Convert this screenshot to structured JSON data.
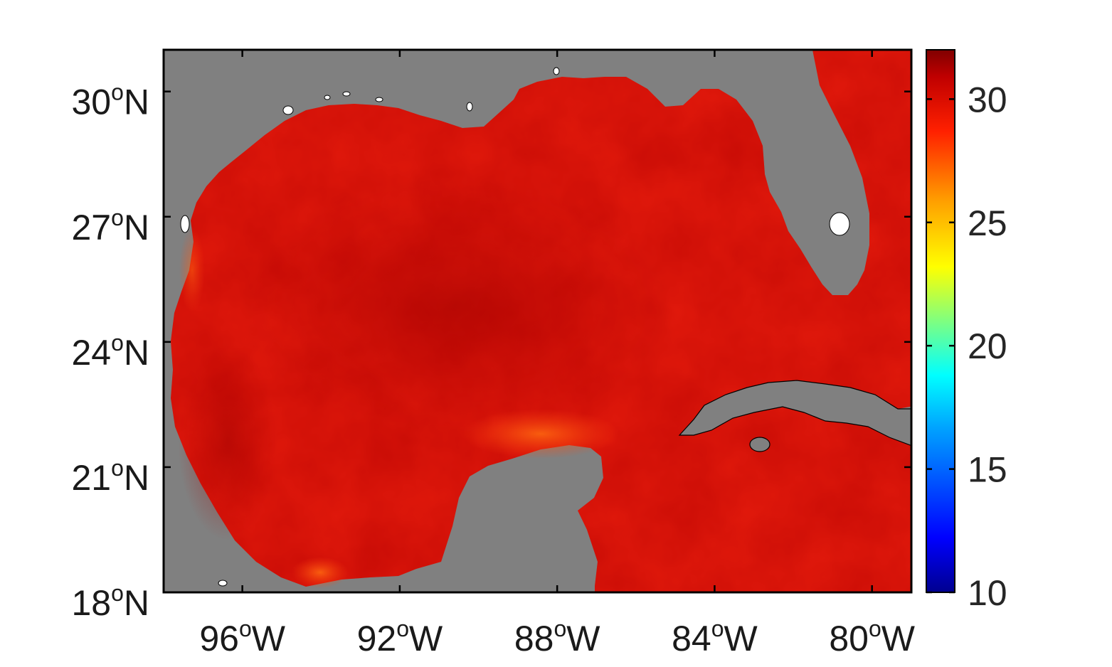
{
  "map": {
    "lat_ticks": [
      {
        "value": 30,
        "label": "30",
        "hemi": "N"
      },
      {
        "value": 27,
        "label": "27",
        "hemi": "N"
      },
      {
        "value": 24,
        "label": "24",
        "hemi": "N"
      },
      {
        "value": 21,
        "label": "21",
        "hemi": "N"
      },
      {
        "value": 18,
        "label": "18",
        "hemi": "N"
      }
    ],
    "lon_ticks": [
      {
        "value": -96,
        "label": "96",
        "hemi": "W"
      },
      {
        "value": -92,
        "label": "92",
        "hemi": "W"
      },
      {
        "value": -88,
        "label": "88",
        "hemi": "W"
      },
      {
        "value": -84,
        "label": "84",
        "hemi": "W"
      },
      {
        "value": -80,
        "label": "80",
        "hemi": "W"
      }
    ],
    "degree_symbol": "o",
    "extent": {
      "lon": [
        -98,
        -79
      ],
      "lat": [
        18,
        31
      ]
    },
    "land_color": "#808080",
    "water_color": "#e31a0c",
    "lake_color": "#ffffff"
  },
  "colorbar": {
    "ticks": [
      {
        "value": 30,
        "label": "30"
      },
      {
        "value": 25,
        "label": "25"
      },
      {
        "value": 20,
        "label": "20"
      },
      {
        "value": 15,
        "label": "15"
      },
      {
        "value": 10,
        "label": "10"
      }
    ],
    "min": 10,
    "max": 32,
    "colormap": "jet"
  }
}
